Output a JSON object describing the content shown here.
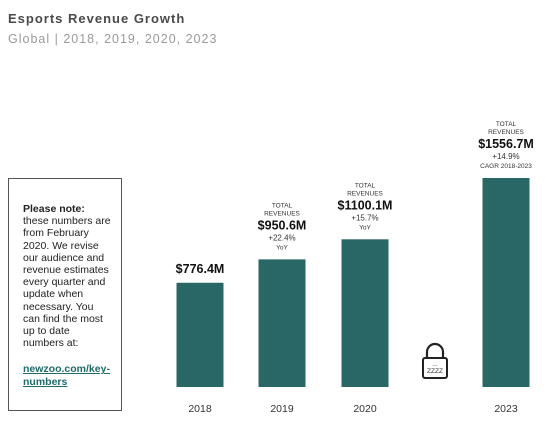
{
  "header": {
    "title": "Esports Revenue Growth",
    "subtitle": "Global | 2018, 2019, 2020, 2023"
  },
  "note": {
    "heading": "Please note:",
    "body": "these numbers are from February 2020. We revise our audience and revenue estimates every quarter and update when necessary. You can find the most up to date numbers at:",
    "link": "newzoo.com/key-numbers"
  },
  "colors": {
    "bar": "#296767"
  },
  "chart_data": {
    "type": "bar",
    "categories": [
      "2018",
      "2019",
      "2020",
      "2023"
    ],
    "values": [
      776.4,
      950.6,
      1100.1,
      1556.7
    ],
    "value_labels": [
      "$776.4M",
      "$950.6M",
      "$1100.1M",
      "$1556.7M"
    ],
    "annotations": [
      {
        "category": "2018",
        "top": "",
        "growth": "",
        "growth_note": ""
      },
      {
        "category": "2019",
        "top": "TOTAL REVENUES",
        "growth": "+22.4%",
        "growth_note": "YoY"
      },
      {
        "category": "2020",
        "top": "TOTAL REVENUES",
        "growth": "+15.7%",
        "growth_note": "YoY"
      },
      {
        "category": "2023",
        "top": "TOTAL REVENUES",
        "growth": "+14.9%",
        "growth_note": "CAGR 2018-2023"
      }
    ],
    "gap_icon": "padlock-icon",
    "gap_icon_text": "ZZZZ",
    "title": "Esports Revenue Growth",
    "xlabel": "",
    "ylabel": "",
    "ylim": [
      0,
      1556.7
    ],
    "grid": false
  }
}
